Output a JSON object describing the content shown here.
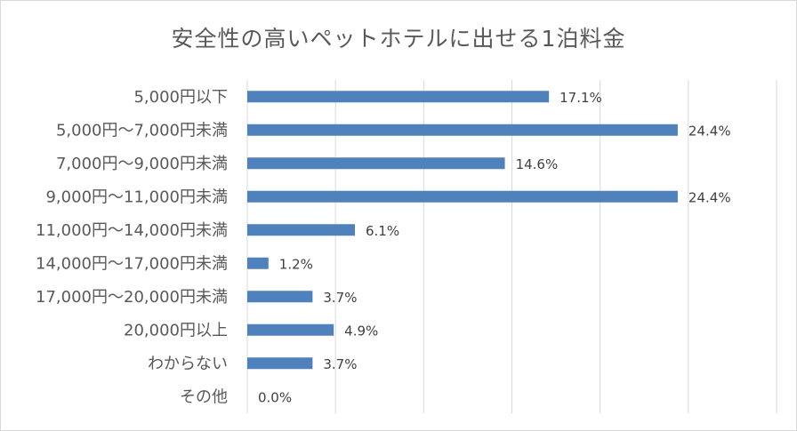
{
  "chart_data": {
    "type": "bar",
    "orientation": "horizontal",
    "title": "安全性の高いペットホテルに出せる1泊料金",
    "xlabel": "",
    "ylabel": "",
    "categories": [
      "5,000円以下",
      "5,000円～7,000円未満",
      "7,000円～9,000円未満",
      "9,000円～11,000円未満",
      "11,000円～14,000円未満",
      "14,000円～17,000円未満",
      "17,000円～20,000円未満",
      "20,000円以上",
      "わからない",
      "その他"
    ],
    "values": [
      17.1,
      24.4,
      14.6,
      24.4,
      6.1,
      1.2,
      3.7,
      4.9,
      3.7,
      0.0
    ],
    "data_labels": [
      "17.1%",
      "24.4%",
      "14.6%",
      "24.4%",
      "6.1%",
      "1.2%",
      "3.7%",
      "4.9%",
      "3.7%",
      "0.0%"
    ],
    "xlim": [
      0,
      30
    ],
    "grid": "vertical",
    "bar_color": "#4f81bd",
    "grid_color": "#d9d9d9"
  }
}
